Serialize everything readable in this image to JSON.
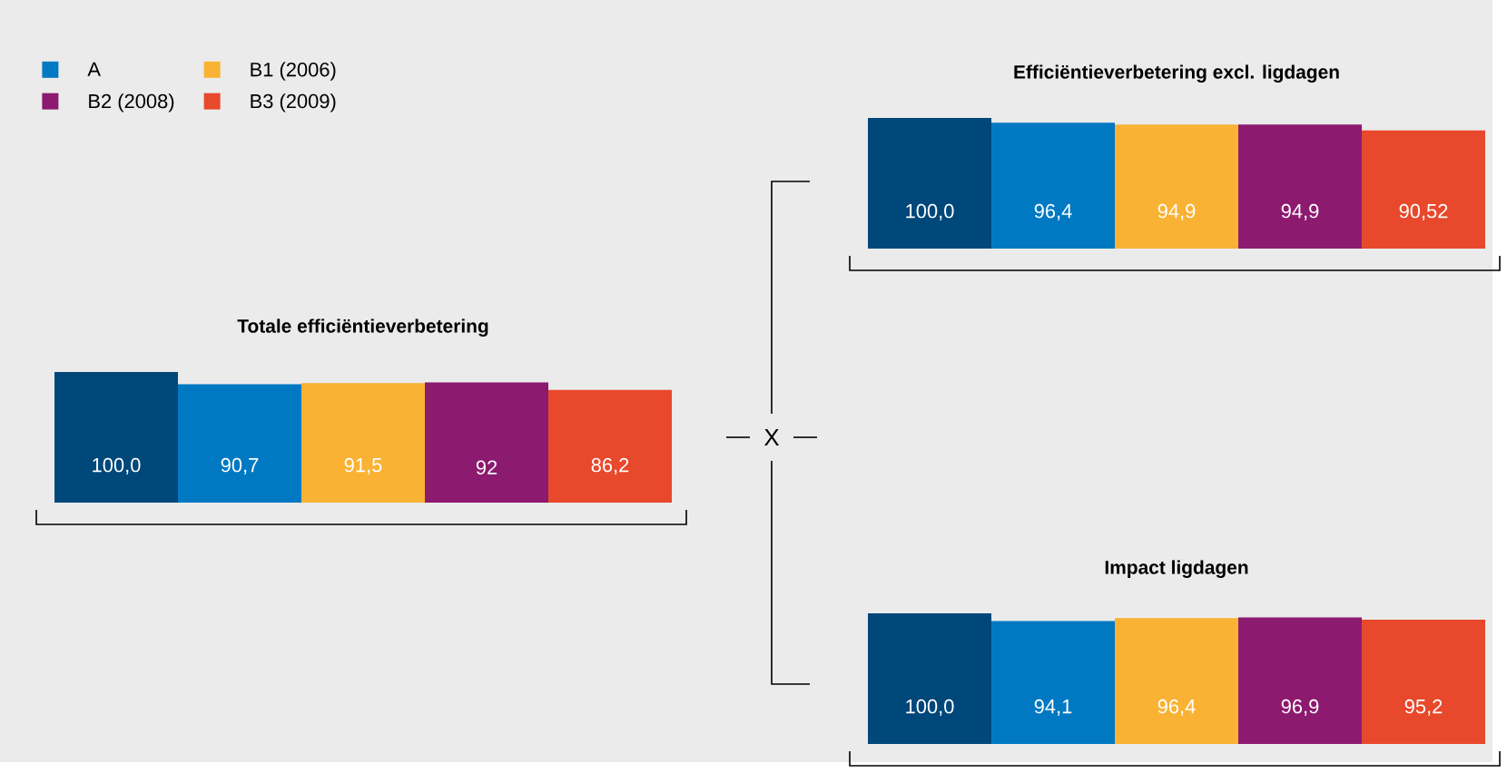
{
  "chart_data": [
    {
      "type": "bar",
      "title": "Totale efficiëntieverbetering",
      "categories": [
        null
      ],
      "legend": "top left",
      "annotations": [
        "X"
      ],
      "series": [
        {
          "color": "#00477a",
          "values": [
            100.0
          ],
          "value_labels": [
            "100,0"
          ]
        },
        {
          "name": "A",
          "color": "#0079c2",
          "values": [
            90.7
          ],
          "value_labels": [
            "90,7"
          ]
        },
        {
          "name": "B1 (2006)",
          "color": "#f9b233",
          "values": [
            91.5
          ],
          "value_labels": [
            "91,5"
          ]
        },
        {
          "name": "B2 (2008)",
          "color": "#8c1a6f",
          "values": [
            92
          ],
          "value_labels": [
            "92"
          ]
        },
        {
          "name": "B3 (2009)",
          "color": "#e8482c",
          "values": [
            86.2
          ],
          "value_labels": [
            "86,2"
          ]
        }
      ]
    },
    {
      "type": "bar",
      "title": "Efficiëntieverbetering excl. ligdagen",
      "categories": [
        null
      ],
      "series": [
        {
          "color": "#00477a",
          "values": [
            100.0
          ],
          "value_labels": [
            "100,0"
          ]
        },
        {
          "color": "#0079c2",
          "values": [
            96.4
          ],
          "value_labels": [
            "96,4"
          ]
        },
        {
          "color": "#f9b233",
          "values": [
            94.9
          ],
          "value_labels": [
            "94,9"
          ]
        },
        {
          "color": "#8c1a6f",
          "values": [
            94.9
          ],
          "value_labels": [
            "94,9"
          ]
        },
        {
          "color": "#e8482c",
          "values": [
            90.52
          ],
          "value_labels": [
            "90,52"
          ]
        }
      ]
    },
    {
      "type": "bar",
      "title": "Impact ligdagen",
      "categories": [
        null
      ],
      "series": [
        {
          "color": "#00477a",
          "values": [
            100.0
          ],
          "value_labels": [
            "100,0"
          ]
        },
        {
          "color": "#0079c2",
          "values": [
            94.1
          ],
          "value_labels": [
            "94,1"
          ]
        },
        {
          "color": "#f9b233",
          "values": [
            96.4
          ],
          "value_labels": [
            "96,4"
          ]
        },
        {
          "color": "#8c1a6f",
          "values": [
            96.9
          ],
          "value_labels": [
            "96,9"
          ]
        },
        {
          "color": "#e8482c",
          "values": [
            95.2
          ],
          "value_labels": [
            "95,2"
          ]
        }
      ]
    }
  ]
}
